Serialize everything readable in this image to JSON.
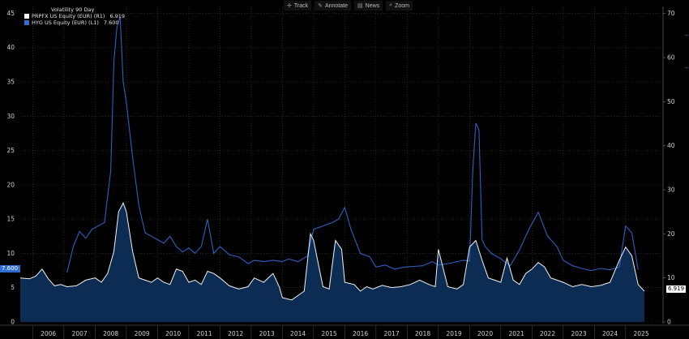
{
  "toolbar": {
    "buttons": [
      {
        "label": "Track",
        "icon": "crosshair-icon",
        "glyph": "✛"
      },
      {
        "label": "Annotate",
        "icon": "pencil-icon",
        "glyph": "✎"
      },
      {
        "label": "News",
        "icon": "news-icon",
        "glyph": "▤"
      },
      {
        "label": "Zoom",
        "icon": "magnifier-icon",
        "glyph": "⌕"
      }
    ]
  },
  "legend": {
    "title": "Volatility 90 Day",
    "entries": [
      {
        "label": "PRPFX US Equity (EUR)  (R1)",
        "value": "6.919",
        "color": "#ffffff"
      },
      {
        "label": "HYG US Equity (EUR)  (L1)",
        "value": "7.600",
        "color": "#2f6fd1"
      }
    ]
  },
  "badges": {
    "left": "7.600",
    "right": "6.919"
  },
  "colors": {
    "background": "#000000",
    "grid": "#3a3a3a",
    "hyg_line": "#2f5fc0",
    "prpfx_line": "#f2f2f2",
    "prpfx_fill": "#0e2e57"
  },
  "chart_data": {
    "type": "line",
    "title": "Volatility 90 Day",
    "x_ticks": [
      "2006",
      "2007",
      "2008",
      "2009",
      "2010",
      "2011",
      "2012",
      "2013",
      "2014",
      "2015",
      "2016",
      "2017",
      "2018",
      "2019",
      "2020",
      "2021",
      "2022",
      "2023",
      "2024",
      "2025"
    ],
    "xlim": [
      2005.6,
      2026.2
    ],
    "left_axis": {
      "ylim": [
        0,
        46
      ],
      "ticks": [
        0,
        5,
        10,
        15,
        20,
        25,
        30,
        35,
        40,
        45
      ]
    },
    "right_axis": {
      "ylim": [
        0,
        71.6
      ],
      "ticks": [
        0,
        10,
        20,
        30,
        40,
        50,
        60,
        70
      ]
    },
    "grid": true,
    "legend_position": "top-left",
    "series": [
      {
        "name": "HYG US Equity (EUR) (L1)",
        "axis": "left",
        "x": [
          2007.1,
          2007.3,
          2007.5,
          2007.7,
          2007.9,
          2008.1,
          2008.3,
          2008.5,
          2008.6,
          2008.7,
          2008.8,
          2008.9,
          2009.0,
          2009.2,
          2009.4,
          2009.6,
          2009.8,
          2010.0,
          2010.2,
          2010.4,
          2010.6,
          2010.8,
          2011.0,
          2011.2,
          2011.4,
          2011.6,
          2011.8,
          2012.0,
          2012.3,
          2012.6,
          2012.9,
          2013.1,
          2013.4,
          2013.7,
          2014.0,
          2014.2,
          2014.5,
          2014.8,
          2015.0,
          2015.3,
          2015.6,
          2015.8,
          2016.0,
          2016.2,
          2016.5,
          2016.8,
          2017.0,
          2017.3,
          2017.6,
          2017.9,
          2018.2,
          2018.5,
          2018.8,
          2019.0,
          2019.3,
          2019.6,
          2019.8,
          2020.0,
          2020.1,
          2020.2,
          2020.3,
          2020.4,
          2020.5,
          2020.7,
          2021.0,
          2021.3,
          2021.6,
          2021.9,
          2022.2,
          2022.5,
          2022.8,
          2023.0,
          2023.3,
          2023.6,
          2023.9,
          2024.2,
          2024.5,
          2024.8,
          2025.0,
          2025.2,
          2025.4
        ],
        "values": [
          7.2,
          11.0,
          13.2,
          12.2,
          13.5,
          14.0,
          14.5,
          22.0,
          38.0,
          43.0,
          44.5,
          35.0,
          32.0,
          24.0,
          17.0,
          13.0,
          12.5,
          12.0,
          11.5,
          12.5,
          11.0,
          10.2,
          10.8,
          10.0,
          11.0,
          15.0,
          10.0,
          11.0,
          9.8,
          9.5,
          8.5,
          9.0,
          8.8,
          9.0,
          8.8,
          9.2,
          8.8,
          9.6,
          13.5,
          14.0,
          14.5,
          15.0,
          16.7,
          13.5,
          10.0,
          9.5,
          8.0,
          8.3,
          7.7,
          8.0,
          8.1,
          8.2,
          8.8,
          8.3,
          8.5,
          8.8,
          9.0,
          8.9,
          22.0,
          29.0,
          28.0,
          12.0,
          11.0,
          10.0,
          9.2,
          8.2,
          10.5,
          13.5,
          16.0,
          12.5,
          11.0,
          9.0,
          8.2,
          7.8,
          7.5,
          7.8,
          7.6,
          8.0,
          14.0,
          13.0,
          7.6
        ]
      },
      {
        "name": "PRPFX US Equity (EUR) (R1)",
        "axis": "right",
        "x": [
          2005.6,
          2005.9,
          2006.1,
          2006.3,
          2006.5,
          2006.7,
          2006.9,
          2007.1,
          2007.4,
          2007.7,
          2008.0,
          2008.2,
          2008.4,
          2008.6,
          2008.75,
          2008.9,
          2009.0,
          2009.2,
          2009.4,
          2009.6,
          2009.8,
          2010.0,
          2010.2,
          2010.4,
          2010.6,
          2010.8,
          2011.0,
          2011.2,
          2011.4,
          2011.6,
          2011.8,
          2012.0,
          2012.3,
          2012.6,
          2012.9,
          2013.1,
          2013.4,
          2013.7,
          2013.9,
          2014.0,
          2014.3,
          2014.5,
          2014.7,
          2014.9,
          2015.0,
          2015.3,
          2015.5,
          2015.7,
          2015.9,
          2016.0,
          2016.3,
          2016.5,
          2016.7,
          2016.9,
          2017.2,
          2017.5,
          2017.8,
          2018.1,
          2018.4,
          2018.7,
          2018.9,
          2019.0,
          2019.3,
          2019.6,
          2019.8,
          2020.0,
          2020.2,
          2020.4,
          2020.6,
          2020.8,
          2021.0,
          2021.2,
          2021.4,
          2021.6,
          2021.8,
          2022.0,
          2022.2,
          2022.4,
          2022.6,
          2022.8,
          2023.0,
          2023.3,
          2023.6,
          2023.9,
          2024.2,
          2024.5,
          2024.8,
          2025.0,
          2025.2,
          2025.4,
          2025.6
        ],
        "values": [
          10.0,
          9.8,
          10.4,
          12.0,
          9.8,
          8.2,
          8.5,
          8.0,
          8.2,
          9.5,
          10.0,
          9.0,
          11.0,
          16.0,
          25.0,
          27.0,
          25.0,
          16.0,
          10.0,
          9.5,
          9.0,
          10.0,
          9.0,
          8.5,
          12.0,
          11.5,
          9.0,
          9.5,
          8.5,
          11.5,
          11.0,
          10.0,
          8.2,
          7.5,
          8.0,
          10.0,
          9.0,
          11.0,
          8.0,
          5.5,
          5.0,
          6.0,
          7.0,
          20.0,
          18.5,
          8.0,
          7.5,
          18.5,
          16.5,
          9.0,
          8.5,
          7.0,
          8.0,
          7.5,
          8.3,
          7.8,
          8.0,
          8.5,
          9.5,
          8.5,
          8.0,
          16.5,
          8.0,
          7.5,
          8.5,
          17.0,
          18.5,
          14.0,
          10.0,
          9.5,
          9.0,
          14.5,
          9.5,
          8.5,
          11.0,
          12.0,
          13.5,
          12.5,
          10.0,
          9.5,
          9.0,
          8.0,
          8.5,
          8.0,
          8.3,
          9.0,
          14.0,
          17.0,
          15.0,
          8.5,
          7.0
        ]
      }
    ]
  }
}
